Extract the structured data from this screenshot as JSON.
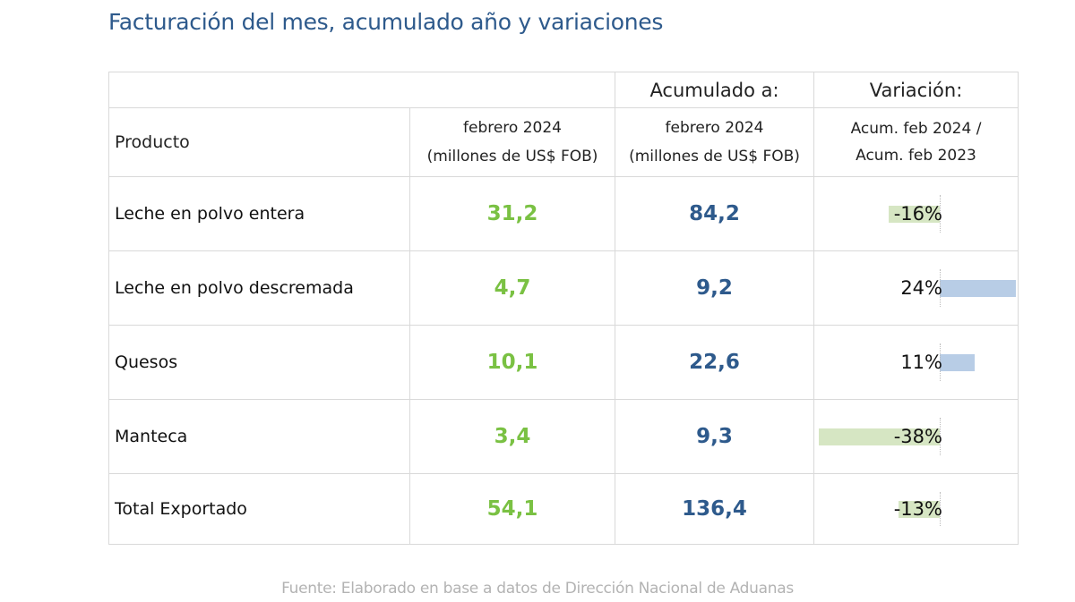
{
  "title": "Facturación del mes, acumulado año y variaciones",
  "header": {
    "acumulado": "Acumulado a:",
    "variacion": "Variación:",
    "producto": "Producto",
    "month": "febrero 2024",
    "month_unit": "(millones de US$ FOB)",
    "acum_month": "febrero 2024",
    "acum_unit": "(millones de US$ FOB)",
    "var_line1": "Acum. feb 2024 /",
    "var_line2": "Acum. feb 2023"
  },
  "rows": [
    {
      "producto": "Leche en polvo entera",
      "mes": "31,2",
      "acumulado": "84,2",
      "variacion": "-16%",
      "variacion_value": -16
    },
    {
      "producto": "Leche en polvo descremada",
      "mes": "4,7",
      "acumulado": "9,2",
      "variacion": "24%",
      "variacion_value": 24
    },
    {
      "producto": "Quesos",
      "mes": "10,1",
      "acumulado": "22,6",
      "variacion": "11%",
      "variacion_value": 11
    },
    {
      "producto": "Manteca",
      "mes": "3,4",
      "acumulado": "9,3",
      "variacion": "-38%",
      "variacion_value": -38
    }
  ],
  "total": {
    "producto": "Total Exportado",
    "mes": "54,1",
    "acumulado": "136,4",
    "variacion": "-13%",
    "variacion_value": -13
  },
  "source": "Fuente: Elaborado en base a datos de Dirección Nacional de Aduanas",
  "colors": {
    "month_value": "#7ac143",
    "acum_value": "#2e5a8c",
    "bar_negative": "#d6e6c3",
    "bar_positive": "#b8cde6"
  }
}
